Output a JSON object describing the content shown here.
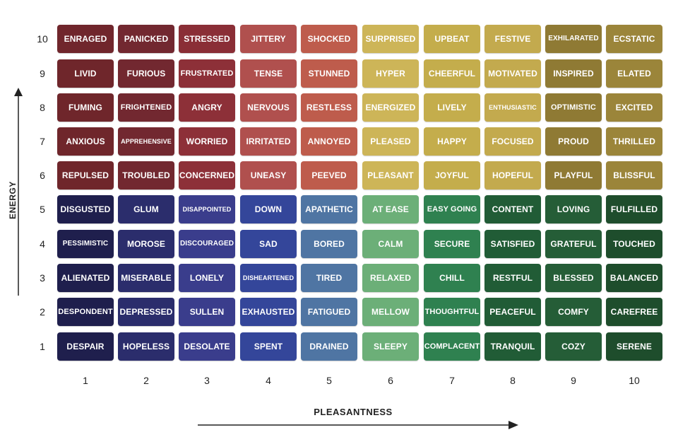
{
  "axes": {
    "y_label": "ENERGY",
    "x_label": "PLEASANTNESS",
    "y_ticks": [
      "10",
      "9",
      "8",
      "7",
      "6",
      "5",
      "4",
      "3",
      "2",
      "1"
    ],
    "x_ticks": [
      "1",
      "2",
      "3",
      "4",
      "5",
      "6",
      "7",
      "8",
      "9",
      "10"
    ]
  },
  "grid": {
    "rows": [
      {
        "energy": 10,
        "cells": [
          {
            "label": "ENRAGED",
            "color": "#70262c"
          },
          {
            "label": "PANICKED",
            "color": "#722830"
          },
          {
            "label": "STRESSED",
            "color": "#8a2e36"
          },
          {
            "label": "JITTERY",
            "color": "#b0504e"
          },
          {
            "label": "SHOCKED",
            "color": "#be5c4c"
          },
          {
            "label": "SURPRISED",
            "color": "#cdb558"
          },
          {
            "label": "UPBEAT",
            "color": "#c4ad4c"
          },
          {
            "label": "FESTIVE",
            "color": "#c3aa4e"
          },
          {
            "label": "EXHILARATED",
            "color": "#8f7a34"
          },
          {
            "label": "ECSTATIC",
            "color": "#9b853a"
          }
        ]
      },
      {
        "energy": 9,
        "cells": [
          {
            "label": "LIVID",
            "color": "#6f262b"
          },
          {
            "label": "FURIOUS",
            "color": "#722830"
          },
          {
            "label": "FRUSTRATED",
            "color": "#8d3038"
          },
          {
            "label": "TENSE",
            "color": "#b0504e"
          },
          {
            "label": "STUNNED",
            "color": "#be5c4c"
          },
          {
            "label": "HYPER",
            "color": "#cdb558"
          },
          {
            "label": "CHEERFUL",
            "color": "#c4ad4c"
          },
          {
            "label": "MOTIVATED",
            "color": "#c3aa4e"
          },
          {
            "label": "INSPIRED",
            "color": "#8f7a34"
          },
          {
            "label": "ELATED",
            "color": "#9b853a"
          }
        ]
      },
      {
        "energy": 8,
        "cells": [
          {
            "label": "FUMING",
            "color": "#6f262b"
          },
          {
            "label": "FRIGHTENED",
            "color": "#722830"
          },
          {
            "label": "ANGRY",
            "color": "#8d3038"
          },
          {
            "label": "NERVOUS",
            "color": "#b0504e"
          },
          {
            "label": "RESTLESS",
            "color": "#be5c4c"
          },
          {
            "label": "ENERGIZED",
            "color": "#cdb558"
          },
          {
            "label": "LIVELY",
            "color": "#c4ad4c"
          },
          {
            "label": "ENTHUSIASTIC",
            "color": "#c3aa4e"
          },
          {
            "label": "OPTIMISTIC",
            "color": "#8f7a34"
          },
          {
            "label": "EXCITED",
            "color": "#9b853a"
          }
        ]
      },
      {
        "energy": 7,
        "cells": [
          {
            "label": "ANXIOUS",
            "color": "#6f262b"
          },
          {
            "label": "APPREHENSIVE",
            "color": "#722830"
          },
          {
            "label": "WORRIED",
            "color": "#8d3038"
          },
          {
            "label": "IRRITATED",
            "color": "#b0504e"
          },
          {
            "label": "ANNOYED",
            "color": "#be5c4c"
          },
          {
            "label": "PLEASED",
            "color": "#cdb558"
          },
          {
            "label": "HAPPY",
            "color": "#c4ad4c"
          },
          {
            "label": "FOCUSED",
            "color": "#c3aa4e"
          },
          {
            "label": "PROUD",
            "color": "#8f7a34"
          },
          {
            "label": "THRILLED",
            "color": "#9b853a"
          }
        ]
      },
      {
        "energy": 6,
        "cells": [
          {
            "label": "REPULSED",
            "color": "#6f262b"
          },
          {
            "label": "TROUBLED",
            "color": "#722830"
          },
          {
            "label": "CONCERNED",
            "color": "#8d3038"
          },
          {
            "label": "UNEASY",
            "color": "#b0504e"
          },
          {
            "label": "PEEVED",
            "color": "#be5c4c"
          },
          {
            "label": "PLEASANT",
            "color": "#cdb558"
          },
          {
            "label": "JOYFUL",
            "color": "#c4ad4c"
          },
          {
            "label": "HOPEFUL",
            "color": "#c3aa4e"
          },
          {
            "label": "PLAYFUL",
            "color": "#8f7a34"
          },
          {
            "label": "BLISSFUL",
            "color": "#9b853a"
          }
        ]
      },
      {
        "energy": 5,
        "cells": [
          {
            "label": "DISGUSTED",
            "color": "#1f1f4d"
          },
          {
            "label": "GLUM",
            "color": "#2b2d6c"
          },
          {
            "label": "DISAPPOINTED",
            "color": "#3a3d8c"
          },
          {
            "label": "DOWN",
            "color": "#34469a"
          },
          {
            "label": "APATHETIC",
            "color": "#4f75a3"
          },
          {
            "label": "AT EASE",
            "color": "#6caf78"
          },
          {
            "label": "EASY GOING",
            "color": "#2f8150"
          },
          {
            "label": "CONTENT",
            "color": "#215c36"
          },
          {
            "label": "LOVING",
            "color": "#255d37"
          },
          {
            "label": "FULFILLED",
            "color": "#1e4d2c"
          }
        ]
      },
      {
        "energy": 4,
        "cells": [
          {
            "label": "PESSIMISTIC",
            "color": "#1f1f4d"
          },
          {
            "label": "MOROSE",
            "color": "#2b2d6c"
          },
          {
            "label": "DISCOURAGED",
            "color": "#3a3d8c"
          },
          {
            "label": "SAD",
            "color": "#34469a"
          },
          {
            "label": "BORED",
            "color": "#4f75a3"
          },
          {
            "label": "CALM",
            "color": "#6caf78"
          },
          {
            "label": "SECURE",
            "color": "#2f8150"
          },
          {
            "label": "SATISFIED",
            "color": "#215c36"
          },
          {
            "label": "GRATEFUL",
            "color": "#255d37"
          },
          {
            "label": "TOUCHED",
            "color": "#1e4d2c"
          }
        ]
      },
      {
        "energy": 3,
        "cells": [
          {
            "label": "ALIENATED",
            "color": "#1f1f4d"
          },
          {
            "label": "MISERABLE",
            "color": "#2b2d6c"
          },
          {
            "label": "LONELY",
            "color": "#3a3d8c"
          },
          {
            "label": "DISHEARTENED",
            "color": "#34469a"
          },
          {
            "label": "TIRED",
            "color": "#4f75a3"
          },
          {
            "label": "RELAXED",
            "color": "#6caf78"
          },
          {
            "label": "CHILL",
            "color": "#2f8150"
          },
          {
            "label": "RESTFUL",
            "color": "#215c36"
          },
          {
            "label": "BLESSED",
            "color": "#255d37"
          },
          {
            "label": "BALANCED",
            "color": "#1e4d2c"
          }
        ]
      },
      {
        "energy": 2,
        "cells": [
          {
            "label": "DESPONDENT",
            "color": "#1f1f4d"
          },
          {
            "label": "DEPRESSED",
            "color": "#2b2d6c"
          },
          {
            "label": "SULLEN",
            "color": "#3a3d8c"
          },
          {
            "label": "EXHAUSTED",
            "color": "#34469a"
          },
          {
            "label": "FATIGUED",
            "color": "#4f75a3"
          },
          {
            "label": "MELLOW",
            "color": "#6caf78"
          },
          {
            "label": "THOUGHTFUL",
            "color": "#2f8150"
          },
          {
            "label": "PEACEFUL",
            "color": "#215c36"
          },
          {
            "label": "COMFY",
            "color": "#255d37"
          },
          {
            "label": "CAREFREE",
            "color": "#1e4d2c"
          }
        ]
      },
      {
        "energy": 1,
        "cells": [
          {
            "label": "DESPAIR",
            "color": "#1f1f4d"
          },
          {
            "label": "HOPELESS",
            "color": "#2b2d6c"
          },
          {
            "label": "DESOLATE",
            "color": "#3a3d8c"
          },
          {
            "label": "SPENT",
            "color": "#34469a"
          },
          {
            "label": "DRAINED",
            "color": "#4f75a3"
          },
          {
            "label": "SLEEPY",
            "color": "#6caf78"
          },
          {
            "label": "COMPLACENT",
            "color": "#2f8150"
          },
          {
            "label": "TRANQUIL",
            "color": "#215c36"
          },
          {
            "label": "COZY",
            "color": "#255d37"
          },
          {
            "label": "SERENE",
            "color": "#1e4d2c"
          }
        ]
      }
    ]
  }
}
